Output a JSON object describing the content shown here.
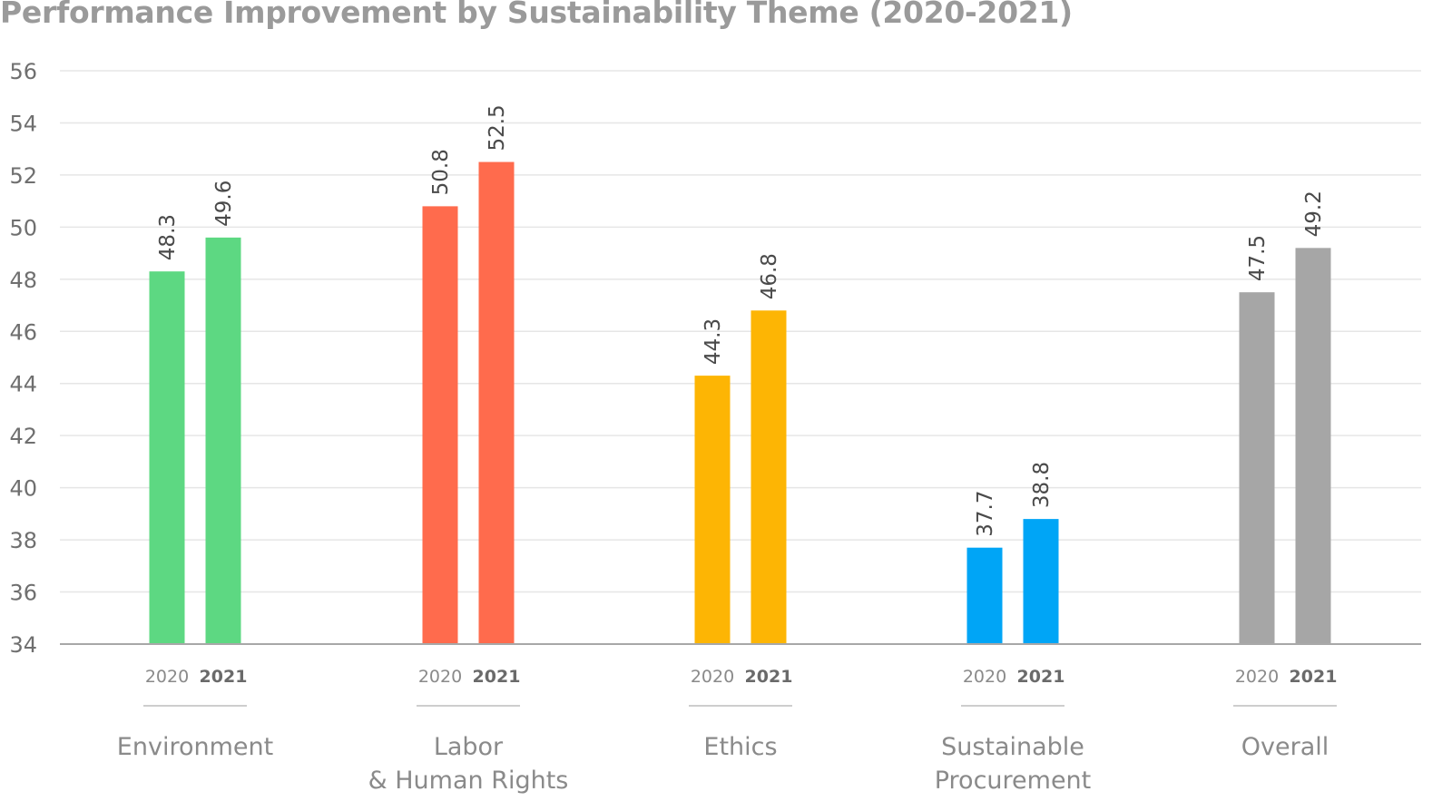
{
  "chart_data": {
    "type": "bar",
    "title": "Performance Improvement by Sustainability Theme (2020-2021)",
    "xlabel": "",
    "ylabel": "",
    "ylim": [
      34,
      56
    ],
    "yticks": [
      34,
      36,
      38,
      40,
      42,
      44,
      46,
      48,
      50,
      52,
      54,
      56
    ],
    "grid": true,
    "legend": "none",
    "bar_labels": [
      "2020",
      "2021"
    ],
    "categories": [
      {
        "label_lines": [
          "Environment"
        ],
        "color": "#5dd882",
        "values": [
          48.3,
          49.6
        ],
        "labels": [
          "48.3",
          "49.6"
        ]
      },
      {
        "label_lines": [
          "Labor",
          "& Human Rights"
        ],
        "color": "#ff6b4d",
        "values": [
          50.8,
          52.5
        ],
        "labels": [
          "50.8",
          "52.5"
        ]
      },
      {
        "label_lines": [
          "Ethics"
        ],
        "color": "#fdb504",
        "values": [
          44.3,
          46.8
        ],
        "labels": [
          "44.3",
          "46.8"
        ]
      },
      {
        "label_lines": [
          "Sustainable",
          "Procurement"
        ],
        "color": "#00a5f6",
        "values": [
          37.7,
          38.8
        ],
        "labels": [
          "37.7",
          "38.8"
        ]
      },
      {
        "label_lines": [
          "Overall"
        ],
        "color": "#a6a6a6",
        "values": [
          47.5,
          49.2
        ],
        "labels": [
          "47.5",
          "49.2"
        ]
      }
    ]
  }
}
